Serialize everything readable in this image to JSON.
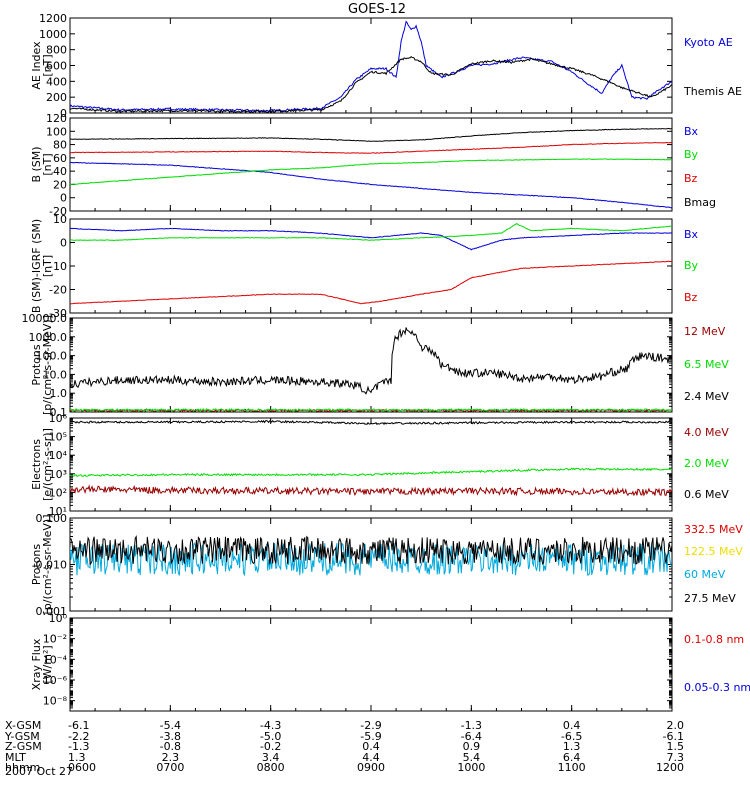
{
  "title": "GOES-12",
  "date_label": "2007 Oct 27",
  "time_axis": {
    "start_hour": 6,
    "end_hour": 12,
    "tick_hours": [
      6,
      7,
      8,
      9,
      10,
      11,
      12
    ]
  },
  "ephemeris": {
    "rows": [
      {
        "label": "X-GSM",
        "values": [
          "-6.1",
          "-5.4",
          "-4.3",
          "-2.9",
          "-1.3",
          "0.4",
          "2.0"
        ]
      },
      {
        "label": "Y-GSM",
        "values": [
          "-2.2",
          "-3.8",
          "-5.0",
          "-5.9",
          "-6.4",
          "-6.5",
          "-6.1"
        ]
      },
      {
        "label": "Z-GSM",
        "values": [
          "-1.3",
          "-0.8",
          "-0.2",
          "0.4",
          "0.9",
          "1.3",
          "1.5"
        ]
      },
      {
        "label": "MLT",
        "values": [
          "1.3",
          "2.3",
          "3.4",
          "4.4",
          "5.4",
          "6.4",
          "7.3"
        ]
      },
      {
        "label": "hhmm",
        "values": [
          "0600",
          "0700",
          "0800",
          "0900",
          "1000",
          "1100",
          "1200"
        ]
      }
    ]
  },
  "colors": {
    "black": "#000000",
    "blue": "#0000dd",
    "red": "#dd0000",
    "green": "#00dd00",
    "darkred": "#990000",
    "yellow": "#eedd00",
    "cyan": "#00aadd"
  },
  "chart_data": [
    {
      "type": "line",
      "panel": "ae",
      "ylabel_lines": [
        "AE Index",
        "[nT]"
      ],
      "scale": "linear",
      "ylim": [
        0,
        1200
      ],
      "yticks": [
        0,
        200,
        400,
        600,
        800,
        1000,
        1200
      ],
      "ytick_labels": [
        "0",
        "200",
        "400",
        "600",
        "800",
        "1000",
        "1200"
      ],
      "series": [
        {
          "name": "Kyoto AE",
          "color": "#0000dd",
          "x": [
            6.0,
            6.5,
            7.0,
            7.5,
            8.0,
            8.5,
            8.7,
            8.85,
            9.0,
            9.15,
            9.25,
            9.3,
            9.35,
            9.4,
            9.45,
            9.5,
            9.55,
            9.7,
            9.85,
            10.0,
            10.2,
            10.5,
            10.8,
            11.0,
            11.15,
            11.3,
            11.4,
            11.5,
            11.6,
            11.75,
            11.9,
            12.0
          ],
          "y": [
            90,
            40,
            50,
            40,
            30,
            60,
            200,
            420,
            560,
            560,
            450,
            900,
            1150,
            1050,
            1100,
            900,
            600,
            450,
            520,
            600,
            620,
            700,
            650,
            520,
            380,
            250,
            450,
            600,
            200,
            180,
            320,
            400
          ]
        },
        {
          "name": "Themis AE",
          "color": "#000000",
          "x": [
            6.0,
            6.5,
            7.0,
            7.5,
            8.0,
            8.5,
            8.7,
            8.85,
            9.0,
            9.15,
            9.3,
            9.4,
            9.5,
            9.6,
            9.8,
            10.0,
            10.2,
            10.4,
            10.6,
            10.8,
            11.0,
            11.2,
            11.4,
            11.5,
            11.6,
            11.8,
            12.0
          ],
          "y": [
            60,
            20,
            30,
            20,
            20,
            40,
            150,
            380,
            520,
            500,
            680,
            700,
            650,
            500,
            480,
            620,
            660,
            640,
            680,
            620,
            560,
            480,
            380,
            320,
            280,
            200,
            350
          ]
        }
      ]
    },
    {
      "type": "line",
      "panel": "bsm",
      "ylabel_lines": [
        "B (SM)",
        "[nT]"
      ],
      "scale": "linear",
      "ylim": [
        -20,
        120
      ],
      "yticks": [
        -20,
        0,
        20,
        40,
        60,
        80,
        100,
        120
      ],
      "ytick_labels": [
        "-20",
        "0",
        "20",
        "40",
        "60",
        "80",
        "100",
        "120"
      ],
      "series": [
        {
          "name": "Bx",
          "color": "#0000dd",
          "x": [
            6.0,
            7.0,
            8.0,
            8.5,
            9.0,
            9.5,
            10.0,
            10.5,
            11.0,
            11.5,
            12.0
          ],
          "y": [
            53,
            49,
            38,
            28,
            20,
            14,
            8,
            4,
            0,
            -7,
            -15
          ]
        },
        {
          "name": "By",
          "color": "#00dd00",
          "x": [
            6.0,
            7.0,
            8.0,
            8.5,
            9.0,
            9.5,
            10.0,
            10.5,
            11.0,
            11.5,
            12.0
          ],
          "y": [
            20,
            31,
            42,
            45,
            51,
            53,
            56,
            57,
            58,
            58,
            57
          ]
        },
        {
          "name": "Bz",
          "color": "#dd0000",
          "x": [
            6.0,
            7.0,
            8.0,
            8.5,
            9.0,
            9.5,
            10.0,
            10.5,
            11.0,
            11.5,
            12.0
          ],
          "y": [
            68,
            69,
            70,
            68,
            67,
            70,
            73,
            76,
            80,
            82,
            83
          ]
        },
        {
          "name": "Bmag",
          "color": "#000000",
          "x": [
            6.0,
            7.0,
            8.0,
            8.5,
            9.0,
            9.5,
            10.0,
            10.5,
            11.0,
            11.5,
            12.0
          ],
          "y": [
            88,
            89,
            90,
            88,
            85,
            87,
            93,
            98,
            101,
            103,
            104
          ]
        }
      ]
    },
    {
      "type": "line",
      "panel": "bigrf",
      "ylabel_lines": [
        "B (SM)-IGRF (SM)",
        "[nT]"
      ],
      "scale": "linear",
      "ylim": [
        -30,
        10
      ],
      "yticks": [
        -30,
        -20,
        -10,
        0,
        10
      ],
      "ytick_labels": [
        "-30",
        "-20",
        "-10",
        "0",
        "10"
      ],
      "series": [
        {
          "name": "Bx",
          "color": "#0000dd",
          "x": [
            6.0,
            6.5,
            7.0,
            7.5,
            8.0,
            8.5,
            9.0,
            9.5,
            9.7,
            10.0,
            10.3,
            10.5,
            11.0,
            11.5,
            12.0
          ],
          "y": [
            6,
            5,
            6,
            5,
            5,
            4,
            2,
            4,
            3,
            -3,
            1,
            2,
            3,
            4,
            4
          ]
        },
        {
          "name": "By",
          "color": "#00dd00",
          "x": [
            6.0,
            6.5,
            7.0,
            7.5,
            8.0,
            8.5,
            9.0,
            9.5,
            10.0,
            10.3,
            10.45,
            10.6,
            11.0,
            11.5,
            12.0
          ],
          "y": [
            1,
            1,
            2,
            2,
            2,
            2,
            1,
            2,
            3,
            4,
            8,
            5,
            6,
            5,
            7
          ]
        },
        {
          "name": "Bz",
          "color": "#dd0000",
          "x": [
            6.0,
            6.5,
            7.0,
            7.5,
            8.0,
            8.5,
            8.9,
            9.1,
            9.5,
            9.8,
            10.0,
            10.5,
            11.0,
            11.5,
            12.0
          ],
          "y": [
            -26,
            -25,
            -24,
            -23,
            -22,
            -22,
            -26,
            -25,
            -22,
            -20,
            -15,
            -11,
            -10,
            -9,
            -8
          ]
        }
      ]
    },
    {
      "type": "line",
      "panel": "protons_low",
      "ylabel_lines": [
        "Protons",
        "[p/(cm²-s-sr-MeV)]"
      ],
      "scale": "log",
      "ylim": [
        0.1,
        10000
      ],
      "yticks": [
        0.1,
        1,
        10,
        100,
        1000,
        10000
      ],
      "ytick_labels": [
        "0.1",
        "1.0",
        "10.0",
        "100.0",
        "1000.0",
        "10000.0"
      ],
      "series": [
        {
          "name": "12 MeV",
          "color": "#990000",
          "noise": true,
          "x": [
            6.0,
            12.0
          ],
          "y": [
            0.12,
            0.12
          ]
        },
        {
          "name": "6.5 MeV",
          "color": "#00dd00",
          "noise": true,
          "x": [
            6.0,
            12.0
          ],
          "y": [
            0.13,
            0.13
          ]
        },
        {
          "name": "2.4 MeV",
          "color": "#000000",
          "x": [
            6.0,
            6.5,
            7.0,
            7.5,
            8.0,
            8.5,
            8.8,
            9.0,
            9.2,
            9.35,
            9.5,
            9.7,
            9.9,
            10.2,
            10.5,
            10.8,
            11.0,
            11.3,
            11.55,
            11.7,
            12.0
          ],
          "y": [
            3,
            5,
            5,
            4,
            5,
            4,
            3,
            1,
            5,
            2500,
            300,
            30,
            12,
            12,
            6,
            8,
            5,
            8,
            20,
            100,
            60
          ]
        }
      ]
    },
    {
      "type": "line",
      "panel": "electrons",
      "ylabel_lines": [
        "Electrons",
        "[e/(cm²-s-sr)]"
      ],
      "scale": "log",
      "ylim": [
        10,
        1000000
      ],
      "yticks": [
        10,
        100,
        1000,
        10000,
        100000,
        1000000
      ],
      "ytick_labels": [
        "10¹",
        "10²",
        "10³",
        "10⁴",
        "10⁵",
        "10⁶"
      ],
      "series": [
        {
          "name": "4.0 MeV",
          "color": "#990000",
          "x": [
            6.0,
            7.0,
            8.0,
            9.0,
            10.0,
            11.0,
            12.0
          ],
          "y": [
            150,
            130,
            120,
            110,
            120,
            110,
            100
          ]
        },
        {
          "name": "2.0 MeV",
          "color": "#00dd00",
          "x": [
            6.0,
            7.0,
            8.0,
            9.0,
            10.0,
            11.0,
            12.0
          ],
          "y": [
            800,
            900,
            900,
            900,
            1300,
            1800,
            1700
          ]
        },
        {
          "name": "0.6 MeV",
          "color": "#000000",
          "x": [
            6.0,
            7.0,
            8.0,
            9.0,
            10.0,
            11.0,
            12.0
          ],
          "y": [
            600000,
            600000,
            650000,
            500000,
            550000,
            600000,
            600000
          ]
        }
      ]
    },
    {
      "type": "line",
      "panel": "protons_high",
      "ylabel_lines": [
        "Protons",
        "[p/(cm²-s-sr-MeV)]"
      ],
      "scale": "log",
      "ylim": [
        0.001,
        0.1
      ],
      "yticks": [
        0.001,
        0.01,
        0.1
      ],
      "ytick_labels": [
        "0.001",
        "0.010",
        "0.100"
      ],
      "series": [
        {
          "name": "332.5 MeV",
          "color": "#dd0000",
          "x": [],
          "y": []
        },
        {
          "name": "122.5 MeV",
          "color": "#eedd00",
          "x": [],
          "y": []
        },
        {
          "name": "60 MeV",
          "color": "#00aadd",
          "noise": true,
          "x": [
            6.0,
            12.0
          ],
          "y": [
            0.013,
            0.013
          ]
        },
        {
          "name": "27.5 MeV",
          "color": "#000000",
          "noise": true,
          "x": [
            6.0,
            12.0
          ],
          "y": [
            0.02,
            0.02
          ]
        }
      ]
    },
    {
      "type": "line",
      "panel": "xray",
      "ylabel_lines": [
        "Xray Flux",
        "[W/m²]"
      ],
      "scale": "log",
      "ylim": [
        1e-09,
        1
      ],
      "yticks": [
        1e-08,
        1e-06,
        0.0001,
        0.01,
        1
      ],
      "ytick_labels": [
        "10⁻⁸",
        "10⁻⁶",
        "10⁻⁴",
        "10⁻²",
        "10⁰"
      ],
      "series": [
        {
          "name": "0.1-0.8 nm",
          "color": "#dd0000",
          "x": [],
          "y": []
        },
        {
          "name": "0.05-0.3 nm",
          "color": "#0000dd",
          "x": [],
          "y": []
        }
      ]
    }
  ]
}
